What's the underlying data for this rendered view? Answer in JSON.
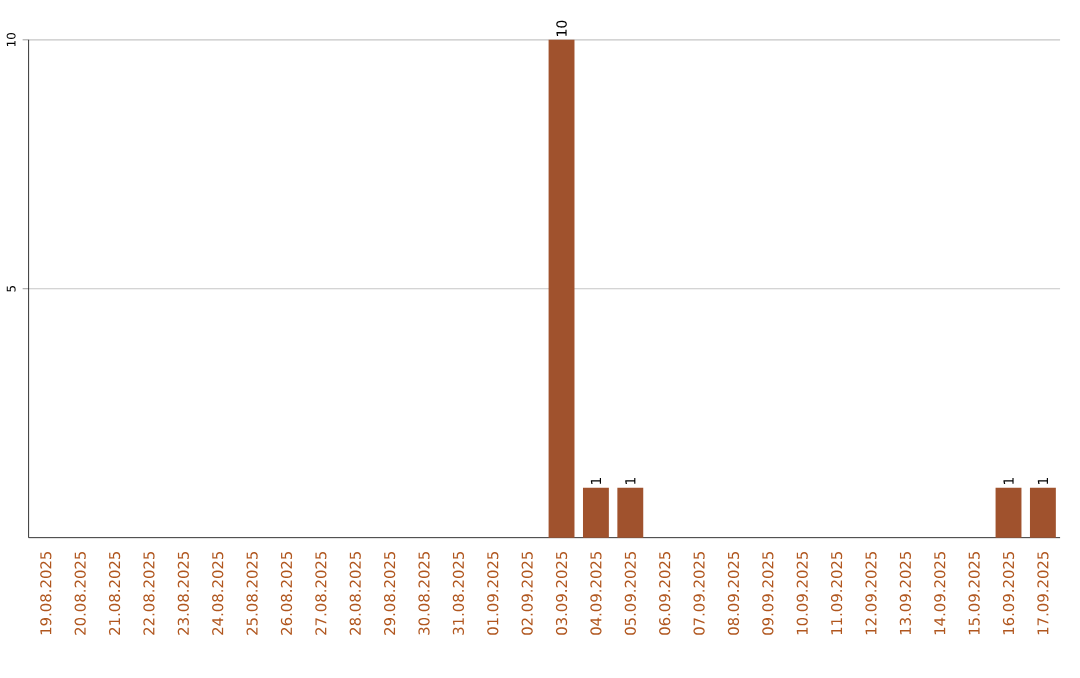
{
  "chart_data": {
    "type": "bar",
    "categories": [
      "19.08.2025",
      "20.08.2025",
      "21.08.2025",
      "22.08.2025",
      "23.08.2025",
      "24.08.2025",
      "25.08.2025",
      "26.08.2025",
      "27.08.2025",
      "28.08.2025",
      "29.08.2025",
      "30.08.2025",
      "31.08.2025",
      "01.09.2025",
      "02.09.2025",
      "03.09.2025",
      "04.09.2025",
      "05.09.2025",
      "06.09.2025",
      "07.09.2025",
      "08.09.2025",
      "09.09.2025",
      "10.09.2025",
      "11.09.2025",
      "12.09.2025",
      "13.09.2025",
      "14.09.2025",
      "15.09.2025",
      "16.09.2025",
      "17.09.2025"
    ],
    "values": [
      0,
      0,
      0,
      0,
      0,
      0,
      0,
      0,
      0,
      0,
      0,
      0,
      0,
      0,
      0,
      10,
      1,
      1,
      0,
      0,
      0,
      0,
      0,
      0,
      0,
      0,
      0,
      0,
      1,
      1
    ],
    "value_labels": [
      null,
      null,
      null,
      null,
      null,
      null,
      null,
      null,
      null,
      null,
      null,
      null,
      null,
      null,
      null,
      "10",
      "1",
      "1",
      null,
      null,
      null,
      null,
      null,
      null,
      null,
      null,
      null,
      null,
      "1",
      "1"
    ],
    "color": "#a0522d",
    "ylim": [
      0,
      10
    ],
    "yticks": [
      5,
      10
    ],
    "grid": "y"
  }
}
